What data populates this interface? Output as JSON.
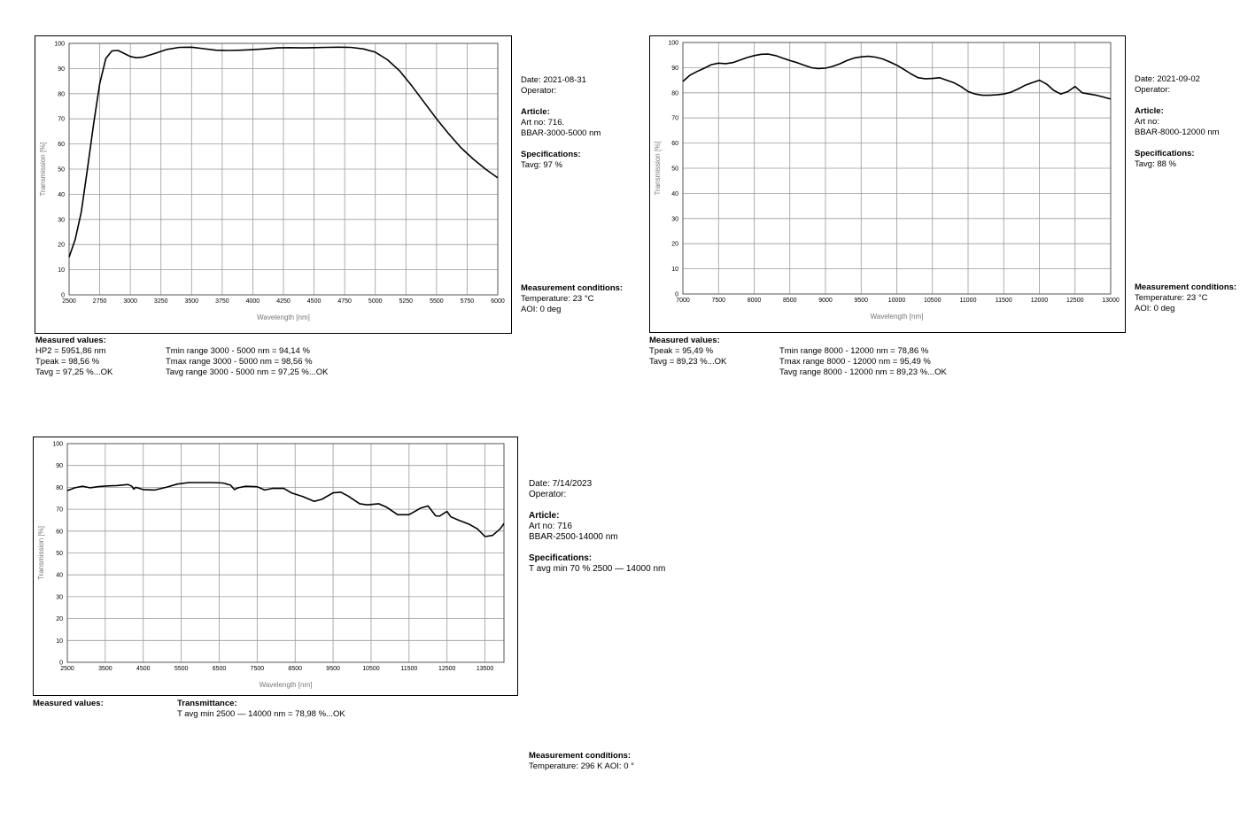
{
  "chart_data": [
    {
      "type": "line",
      "xlabel": "Wavelength [nm]",
      "ylabel": "Transmission [%]",
      "xlim": [
        2500,
        6000
      ],
      "ylim": [
        0,
        100
      ],
      "xticks": [
        2500,
        2750,
        3000,
        3250,
        3500,
        3750,
        4000,
        4250,
        4500,
        4750,
        5000,
        5250,
        5500,
        5750,
        6000
      ],
      "yticks": [
        0,
        10,
        20,
        30,
        40,
        50,
        60,
        70,
        80,
        90,
        100
      ],
      "grid": true,
      "series": [
        {
          "x": [
            2500,
            2550,
            2600,
            2650,
            2700,
            2750,
            2800,
            2850,
            2900,
            2950,
            3000,
            3050,
            3100,
            3200,
            3300,
            3400,
            3500,
            3600,
            3700,
            3800,
            3900,
            4000,
            4100,
            4200,
            4300,
            4400,
            4500,
            4600,
            4700,
            4800,
            4900,
            5000,
            5100,
            5200,
            5300,
            5400,
            5500,
            5600,
            5700,
            5800,
            5900,
            6000
          ],
          "y": [
            15,
            22,
            33,
            50,
            68,
            84,
            94,
            97,
            97.2,
            96,
            94.8,
            94.3,
            94.5,
            96,
            97.6,
            98.4,
            98.5,
            97.9,
            97.3,
            97.2,
            97.3,
            97.5,
            97.8,
            98.2,
            98.3,
            98.2,
            98.3,
            98.4,
            98.5,
            98.4,
            97.8,
            96.5,
            93.5,
            89,
            83,
            76.5,
            70,
            64,
            58.5,
            54,
            50,
            46.5
          ]
        }
      ]
    },
    {
      "type": "line",
      "xlabel": "Wavelength [nm]",
      "ylabel": "Transmission [%]",
      "xlim": [
        7000,
        13000
      ],
      "ylim": [
        0,
        100
      ],
      "xticks": [
        7000,
        7500,
        8000,
        8500,
        9000,
        9500,
        10000,
        10500,
        11000,
        11500,
        12000,
        12500,
        13000
      ],
      "yticks": [
        0,
        10,
        20,
        30,
        40,
        50,
        60,
        70,
        80,
        90,
        100
      ],
      "grid": true,
      "series": [
        {
          "x": [
            7000,
            7100,
            7200,
            7300,
            7400,
            7500,
            7600,
            7700,
            7800,
            7900,
            8000,
            8100,
            8200,
            8300,
            8400,
            8500,
            8600,
            8700,
            8800,
            8900,
            9000,
            9100,
            9200,
            9300,
            9400,
            9500,
            9600,
            9700,
            9800,
            9900,
            10000,
            10100,
            10200,
            10300,
            10400,
            10500,
            10600,
            10700,
            10800,
            10900,
            11000,
            11100,
            11200,
            11300,
            11400,
            11500,
            11600,
            11700,
            11800,
            11900,
            12000,
            12100,
            12200,
            12300,
            12400,
            12500,
            12600,
            12700,
            12800,
            12900,
            13000
          ],
          "y": [
            84.5,
            87,
            88.5,
            89.8,
            91.2,
            91.8,
            91.6,
            92,
            93,
            94,
            94.8,
            95.3,
            95.4,
            94.8,
            93.8,
            92.8,
            92,
            91,
            90,
            89.6,
            89.8,
            90.5,
            91.5,
            92.8,
            93.8,
            94.3,
            94.5,
            94.2,
            93.5,
            92.3,
            91,
            89.3,
            87.5,
            86,
            85.6,
            85.7,
            86,
            85,
            84,
            82.5,
            80.5,
            79.5,
            79,
            79,
            79.2,
            79.5,
            80.2,
            81.5,
            83,
            84,
            85,
            83.5,
            81,
            79.5,
            80.5,
            82.5,
            80,
            79.5,
            79,
            78.3,
            77.5
          ]
        }
      ]
    },
    {
      "type": "line",
      "xlabel": "Wavelength [nm]",
      "ylabel": "Transmission [%]",
      "xlim": [
        2500,
        14000
      ],
      "ylim": [
        0,
        100
      ],
      "xticks": [
        2500,
        3500,
        4500,
        5500,
        6500,
        7500,
        8500,
        9500,
        10500,
        11500,
        12500,
        13500
      ],
      "yticks": [
        0,
        10,
        20,
        30,
        40,
        50,
        60,
        70,
        80,
        90,
        100
      ],
      "grid": true,
      "series": [
        {
          "x": [
            2500,
            2700,
            2900,
            3100,
            3300,
            3500,
            3800,
            4100,
            4200,
            4250,
            4300,
            4500,
            4800,
            5100,
            5400,
            5700,
            6000,
            6300,
            6600,
            6800,
            6900,
            7000,
            7200,
            7500,
            7700,
            7900,
            8200,
            8400,
            8700,
            9000,
            9200,
            9500,
            9700,
            9900,
            10200,
            10400,
            10700,
            10900,
            11200,
            11500,
            11800,
            12000,
            12200,
            12300,
            12500,
            12600,
            12800,
            13100,
            13300,
            13500,
            13700,
            13900,
            14000
          ],
          "y": [
            78.5,
            79.8,
            80.5,
            79.8,
            80.3,
            80.6,
            80.8,
            81.3,
            80.5,
            79.2,
            80,
            79,
            78.8,
            80,
            81.5,
            82.2,
            82.2,
            82.2,
            82,
            81,
            79,
            79.8,
            80.5,
            80.3,
            78.8,
            79.5,
            79.5,
            77.5,
            75.8,
            73.6,
            74.5,
            77.5,
            77.8,
            76,
            72.5,
            72,
            72.5,
            71,
            67.5,
            67.5,
            70.5,
            71.5,
            67,
            66.8,
            69,
            66.5,
            65,
            63,
            61,
            57.5,
            58,
            61,
            63.5
          ]
        }
      ]
    }
  ],
  "panels": [
    {
      "date": "Date:   2021-08-31",
      "operator": "Operator:",
      "article_heading": "Article:",
      "art_no": "Art no: 716.",
      "article_desc": "BBAR-3000-5000 nm",
      "spec_heading": "Specifications:",
      "spec_value": "Tavg: 97 %",
      "meas_heading": "Measurement conditions:",
      "temperature": "Temperature:       23  °C",
      "aoi": "AOI:     0 deg",
      "measured_heading": "Measured values:",
      "measured_left": [
        "HP2 = 5951,86 nm",
        "Tpeak = 98,56 %",
        "Tavg = 97,25 %...OK"
      ],
      "measured_right": [
        "Tmin range 3000 - 5000 nm = 94,14 %",
        "Tmax range 3000 - 5000 nm = 98,56 %",
        "Tavg range 3000 - 5000 nm = 97,25 %...OK"
      ]
    },
    {
      "date": "Date:   2021-09-02",
      "operator": "Operator:",
      "article_heading": "Article:",
      "art_no": "Art no:",
      "article_desc": "BBAR-8000-12000 nm",
      "spec_heading": "Specifications:",
      "spec_value": "Tavg: 88 %",
      "meas_heading": "Measurement conditions:",
      "temperature": "Temperature:       23  °C",
      "aoi": "AOI:     0 deg",
      "measured_heading": "Measured values:",
      "measured_left": [
        "Tpeak = 95,49 %",
        "Tavg = 89,23 %...OK"
      ],
      "measured_right": [
        "Tmin range 8000 - 12000 nm = 78,86 %",
        "Tmax range 8000 - 12000 nm = 95,49 %",
        "Tavg range 8000 - 12000 nm = 89,23 %...OK"
      ]
    },
    {
      "date": "Date:   7/14/2023",
      "operator": "Operator:",
      "article_heading": "Article:",
      "art_no": "Art no: 716",
      "article_desc": "BBAR-2500-14000 nm",
      "spec_heading": "Specifications:",
      "spec_value": "T avg min 70 % 2500 — 14000 nm",
      "measured_heading": "Measured values:",
      "transmittance_heading": "Transmittance:",
      "transmittance_value": "T avg min 2500 — 14000 nm = 78,98 %...OK",
      "meas_heading": "Measurement conditions:",
      "conditions_value": "Temperature: 296 K   AOI: 0 °"
    }
  ]
}
